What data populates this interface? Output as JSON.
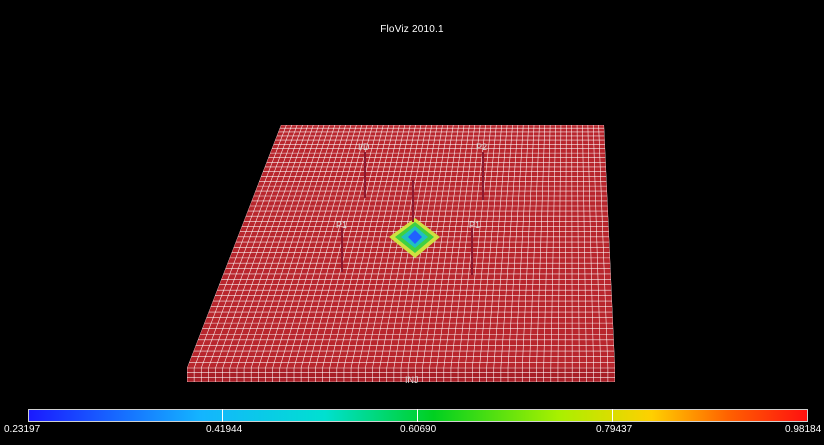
{
  "app": {
    "title": "FloViz 2010.1"
  },
  "scene": {
    "grid_color": "#b8262d",
    "grid_line_color": "#ffffff",
    "wells": [
      {
        "name": "I/D"
      },
      {
        "name": "P2"
      },
      {
        "name": "P1"
      },
      {
        "name": "P1"
      },
      {
        "name": "INJ"
      }
    ],
    "center_anomaly_colors": [
      "#2060ff",
      "#20c0c0",
      "#40d040",
      "#d0e040"
    ]
  },
  "colorbar": {
    "labels": [
      "0.23197",
      "0.41944",
      "0.60690",
      "0.79437",
      "0.98184"
    ],
    "min": 0.23197,
    "max": 0.98184
  }
}
